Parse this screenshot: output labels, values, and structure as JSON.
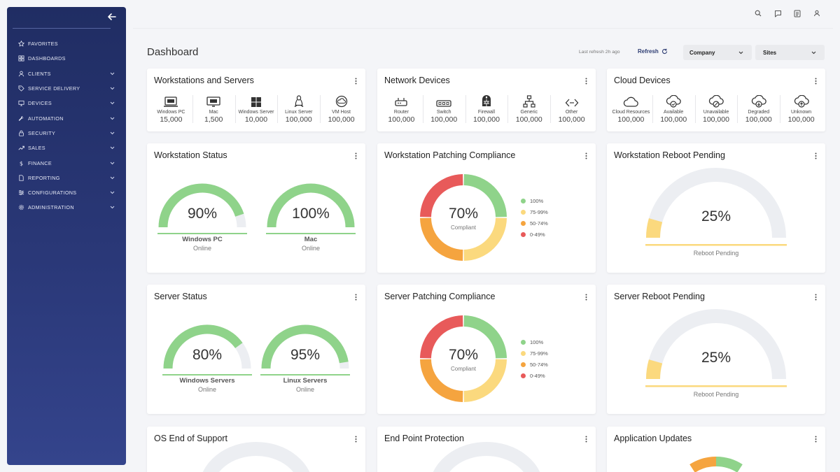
{
  "sidebar": {
    "items": [
      {
        "label": "FAVORITES",
        "icon": "star-icon",
        "chevron": false
      },
      {
        "label": "DASHBOARDS",
        "icon": "grid-icon",
        "chevron": false
      },
      {
        "label": "CLIENTS",
        "icon": "user-icon",
        "chevron": true
      },
      {
        "label": "SERVICE DELIVERY",
        "icon": "tag-icon",
        "chevron": true
      },
      {
        "label": "DEVICES",
        "icon": "monitor-icon",
        "chevron": true
      },
      {
        "label": "AUTOMATION",
        "icon": "wrench-icon",
        "chevron": true
      },
      {
        "label": "SECURITY",
        "icon": "lock-icon",
        "chevron": true
      },
      {
        "label": "SALES",
        "icon": "trend-icon",
        "chevron": true
      },
      {
        "label": "FINANCE",
        "icon": "dollar-icon",
        "chevron": true
      },
      {
        "label": "REPORTING",
        "icon": "document-icon",
        "chevron": true
      },
      {
        "label": "CONFIGURATIONS",
        "icon": "sliders-icon",
        "chevron": true
      },
      {
        "label": "ADMINISTRATION",
        "icon": "gear-icon",
        "chevron": true
      }
    ]
  },
  "header": {
    "title": "Dashboard",
    "last_refresh": "Last refresh 2h ago",
    "refresh_label": "Refresh",
    "company_select": "Company",
    "sites_select": "Sites"
  },
  "cards": {
    "workstations_servers": {
      "title": "Workstations and Servers",
      "items": [
        {
          "label": "Windows PC",
          "value": "15,000",
          "icon": "laptop-icon"
        },
        {
          "label": "Mac",
          "value": "1,500",
          "icon": "mac-icon"
        },
        {
          "label": "Windows Server",
          "value": "10,000",
          "icon": "windows-icon"
        },
        {
          "label": "Linux Server",
          "value": "100,000",
          "icon": "linux-icon"
        },
        {
          "label": "VM Host",
          "value": "100,000",
          "icon": "cloud-circle-icon"
        }
      ]
    },
    "network_devices": {
      "title": "Network Devices",
      "items": [
        {
          "label": "Router",
          "value": "100,000",
          "icon": "router-icon"
        },
        {
          "label": "Switch",
          "value": "100,000",
          "icon": "switch-icon"
        },
        {
          "label": "Firewall",
          "value": "100,000",
          "icon": "firewall-icon"
        },
        {
          "label": "Generic",
          "value": "100,000",
          "icon": "network-tree-icon"
        },
        {
          "label": "Other",
          "value": "100,000",
          "icon": "code-icon"
        }
      ]
    },
    "cloud_devices": {
      "title": "Cloud Devices",
      "items": [
        {
          "label": "Cloud Resources",
          "value": "100,000",
          "icon": "cloud-icon"
        },
        {
          "label": "Available",
          "value": "100,000",
          "icon": "cloud-check-icon"
        },
        {
          "label": "Unavailable",
          "value": "100,000",
          "icon": "cloud-off-icon"
        },
        {
          "label": "Degraded",
          "value": "100,000",
          "icon": "cloud-down-icon"
        },
        {
          "label": "Unknown",
          "value": "100,000",
          "icon": "cloud-up-icon"
        }
      ]
    },
    "workstation_status": {
      "title": "Workstation Status",
      "gauges": [
        {
          "pct": "90%",
          "value": 90,
          "name": "Windows PC",
          "sub": "Online"
        },
        {
          "pct": "100%",
          "value": 100,
          "name": "Mac",
          "sub": "Online"
        }
      ]
    },
    "workstation_patching": {
      "title": "Workstation Patching Compliance",
      "pct": "70%",
      "sub": "Compliant"
    },
    "workstation_reboot": {
      "title": "Workstation Reboot Pending",
      "pct": "25%",
      "value": 25,
      "sub": "Reboot Pending"
    },
    "server_status": {
      "title": "Server Status",
      "gauges": [
        {
          "pct": "80%",
          "value": 80,
          "name": "Windows Servers",
          "sub": "Online"
        },
        {
          "pct": "95%",
          "value": 95,
          "name": "Linux Servers",
          "sub": "Online"
        }
      ]
    },
    "server_patching": {
      "title": "Server Patching Compliance",
      "pct": "70%",
      "sub": "Compliant"
    },
    "server_reboot": {
      "title": "Server Reboot Pending",
      "pct": "25%",
      "value": 25,
      "sub": "Reboot Pending"
    },
    "os_eos": {
      "title": "OS End of Support"
    },
    "endpoint": {
      "title": "End Point Protection"
    },
    "app_updates": {
      "title": "Application Updates"
    }
  },
  "legend": [
    {
      "label": "100%",
      "color": "#8fd38a"
    },
    {
      "label": "75-99%",
      "color": "#fbd97e"
    },
    {
      "label": "50-74%",
      "color": "#f5a43f"
    },
    {
      "label": "0-49%",
      "color": "#e85a5a"
    }
  ],
  "colors": {
    "green": "#8fd38a",
    "yellow": "#fbd97e",
    "orange": "#f5a43f",
    "red": "#e85a5a",
    "track": "#eceef2",
    "sidebar": "#2a3878"
  }
}
